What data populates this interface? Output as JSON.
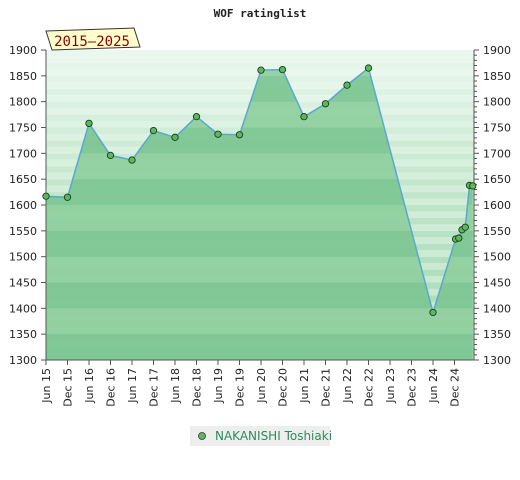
{
  "chart_data": {
    "type": "area",
    "title": "WOF ratinglist",
    "range_label": "2015–2025",
    "ylim": [
      1300,
      1900
    ],
    "yticks": [
      1300,
      1350,
      1400,
      1450,
      1500,
      1550,
      1600,
      1650,
      1700,
      1750,
      1800,
      1850,
      1900
    ],
    "xticks": [
      "Jun 15",
      "Dec 15",
      "Jun 16",
      "Dec 16",
      "Jun 17",
      "Dec 17",
      "Jun 18",
      "Dec 18",
      "Jun 19",
      "Dec 19",
      "Jun 20",
      "Dec 20",
      "Jun 21",
      "Dec 21",
      "Jun 22",
      "Dec 22",
      "Jun 23",
      "Dec 23",
      "Jun 24",
      "Dec 24"
    ],
    "legend_position": "bottom",
    "grid": true,
    "colors": {
      "fill": "#8fcf9f",
      "line": "#5aa8d0",
      "marker": "#5cb85c",
      "band_dark": "#7ec495",
      "band_light": "#f2faf4"
    },
    "series": [
      {
        "name": "NAKANISHI Toshiaki",
        "points": [
          {
            "x": 0,
            "y": 1617
          },
          {
            "x": 1,
            "y": 1615
          },
          {
            "x": 2,
            "y": 1758
          },
          {
            "x": 3,
            "y": 1696
          },
          {
            "x": 4,
            "y": 1687
          },
          {
            "x": 5,
            "y": 1744
          },
          {
            "x": 6,
            "y": 1731
          },
          {
            "x": 7,
            "y": 1771
          },
          {
            "x": 8,
            "y": 1737
          },
          {
            "x": 9,
            "y": 1736
          },
          {
            "x": 10,
            "y": 1861
          },
          {
            "x": 11,
            "y": 1862
          },
          {
            "x": 12,
            "y": 1771
          },
          {
            "x": 13,
            "y": 1796
          },
          {
            "x": 14,
            "y": 1832
          },
          {
            "x": 15,
            "y": 1865
          },
          {
            "x": 18,
            "y": 1392
          },
          {
            "x": 19.05,
            "y": 1534
          },
          {
            "x": 19.2,
            "y": 1536
          },
          {
            "x": 19.35,
            "y": 1552
          },
          {
            "x": 19.5,
            "y": 1557
          },
          {
            "x": 19.7,
            "y": 1638
          },
          {
            "x": 19.85,
            "y": 1637
          }
        ]
      }
    ]
  }
}
